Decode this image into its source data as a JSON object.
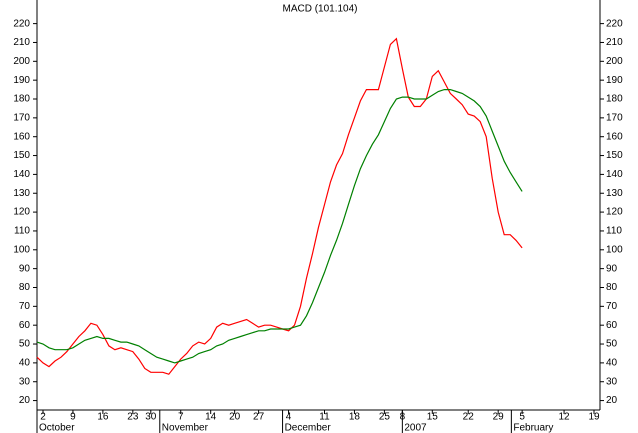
{
  "chart_data": {
    "type": "line",
    "title": "MACD (101.104)",
    "xlim": [
      0,
      94
    ],
    "xticks": [
      {
        "value": 1,
        "label": "2"
      },
      {
        "value": 6,
        "label": "9"
      },
      {
        "value": 11,
        "label": "16"
      },
      {
        "value": 16,
        "label": "23"
      },
      {
        "value": 19,
        "label": "30"
      },
      {
        "value": 24,
        "label": "7"
      },
      {
        "value": 29,
        "label": "14"
      },
      {
        "value": 33,
        "label": "20"
      },
      {
        "value": 37,
        "label": "27"
      },
      {
        "value": 42,
        "label": "4"
      },
      {
        "value": 48,
        "label": "11"
      },
      {
        "value": 53,
        "label": "18"
      },
      {
        "value": 58,
        "label": "25"
      },
      {
        "value": 61,
        "label": "8"
      },
      {
        "value": 66,
        "label": "15"
      },
      {
        "value": 72,
        "label": "22"
      },
      {
        "value": 77,
        "label": "29"
      },
      {
        "value": 81,
        "label": "5"
      },
      {
        "value": 88,
        "label": "12"
      },
      {
        "value": 93,
        "label": "19"
      }
    ],
    "month_labels": [
      {
        "value": 0,
        "label": "October"
      },
      {
        "value": 20.5,
        "label": "November"
      },
      {
        "value": 41,
        "label": "December"
      },
      {
        "value": 61,
        "label": "2007"
      },
      {
        "value": 79.2,
        "label": "February"
      }
    ],
    "ylim": [
      15,
      232
    ],
    "yticks": [
      20,
      30,
      40,
      50,
      60,
      70,
      80,
      90,
      100,
      110,
      120,
      130,
      140,
      150,
      160,
      170,
      180,
      190,
      200,
      210,
      220
    ],
    "series": [
      {
        "color": "#ff0000",
        "values": [
          43,
          40,
          38,
          41,
          43,
          46,
          50,
          54,
          57,
          61,
          60,
          55,
          49,
          47,
          48,
          47,
          46,
          42,
          37,
          35,
          35,
          35,
          34,
          38,
          42,
          45,
          49,
          51,
          50,
          53,
          59,
          61,
          60,
          61,
          62,
          63,
          61,
          59,
          60,
          60,
          59,
          58,
          57,
          60,
          70,
          85,
          98,
          112,
          124,
          136,
          145,
          151,
          161,
          170,
          179,
          185,
          185,
          185,
          197,
          209,
          212,
          196,
          181,
          176,
          176,
          180,
          192,
          195,
          189,
          183,
          180,
          177,
          172,
          171,
          168,
          160,
          138,
          120,
          108,
          108,
          105,
          101
        ]
      },
      {
        "color": "#008000",
        "values": [
          51,
          50,
          48,
          47,
          47,
          47,
          48,
          50,
          52,
          53,
          54,
          53,
          53,
          52,
          51,
          51,
          50,
          49,
          47,
          45,
          43,
          42,
          41,
          40,
          41,
          42,
          43,
          45,
          46,
          47,
          49,
          50,
          52,
          53,
          54,
          55,
          56,
          57,
          57,
          58,
          58,
          58,
          58,
          59,
          60,
          65,
          72,
          80,
          88,
          97,
          105,
          114,
          124,
          134,
          143,
          150,
          156,
          161,
          168,
          175,
          180,
          181,
          181,
          180,
          180,
          180,
          182,
          184,
          185,
          185,
          184,
          183,
          181,
          179,
          176,
          171,
          163,
          155,
          147,
          141,
          136,
          131
        ]
      }
    ]
  }
}
